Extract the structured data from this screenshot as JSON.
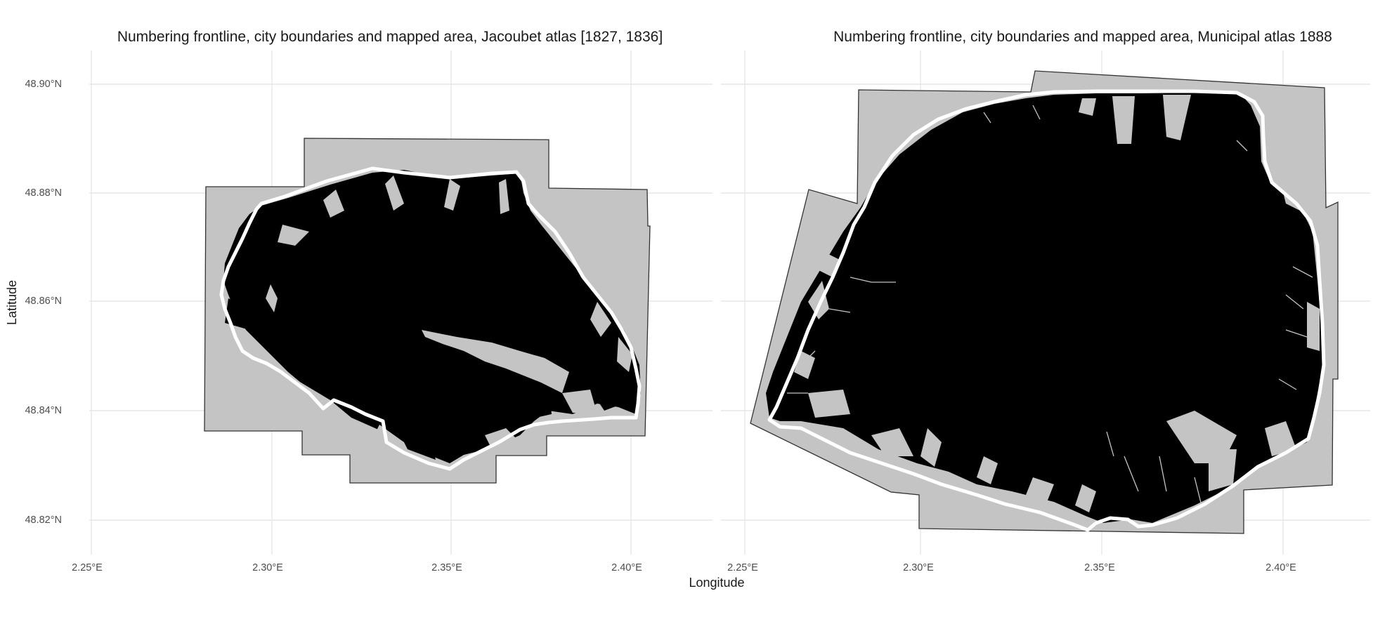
{
  "panels": [
    {
      "title": "Numbering frontline, city boundaries and mapped area, Jacoubet atlas [1827, 1836]",
      "x_ticks": [
        "2.25°E",
        "2.30°E",
        "2.35°E",
        "2.40°E"
      ],
      "y_ticks": [
        "48.90°N",
        "48.88°N",
        "48.86°N",
        "48.84°N",
        "48.82°N"
      ]
    },
    {
      "title": "Numbering frontline, city boundaries and mapped area, Municipal atlas 1888",
      "x_ticks": [
        "2.25°E",
        "2.30°E",
        "2.35°E",
        "2.40°E"
      ]
    }
  ],
  "axes": {
    "xlabel": "Longitude",
    "ylabel": "Latitude"
  },
  "colors": {
    "city_boundary_fill": "#c4c4c4",
    "mapped_area": "#000000",
    "numbering_frontline": "#ffffff"
  }
}
